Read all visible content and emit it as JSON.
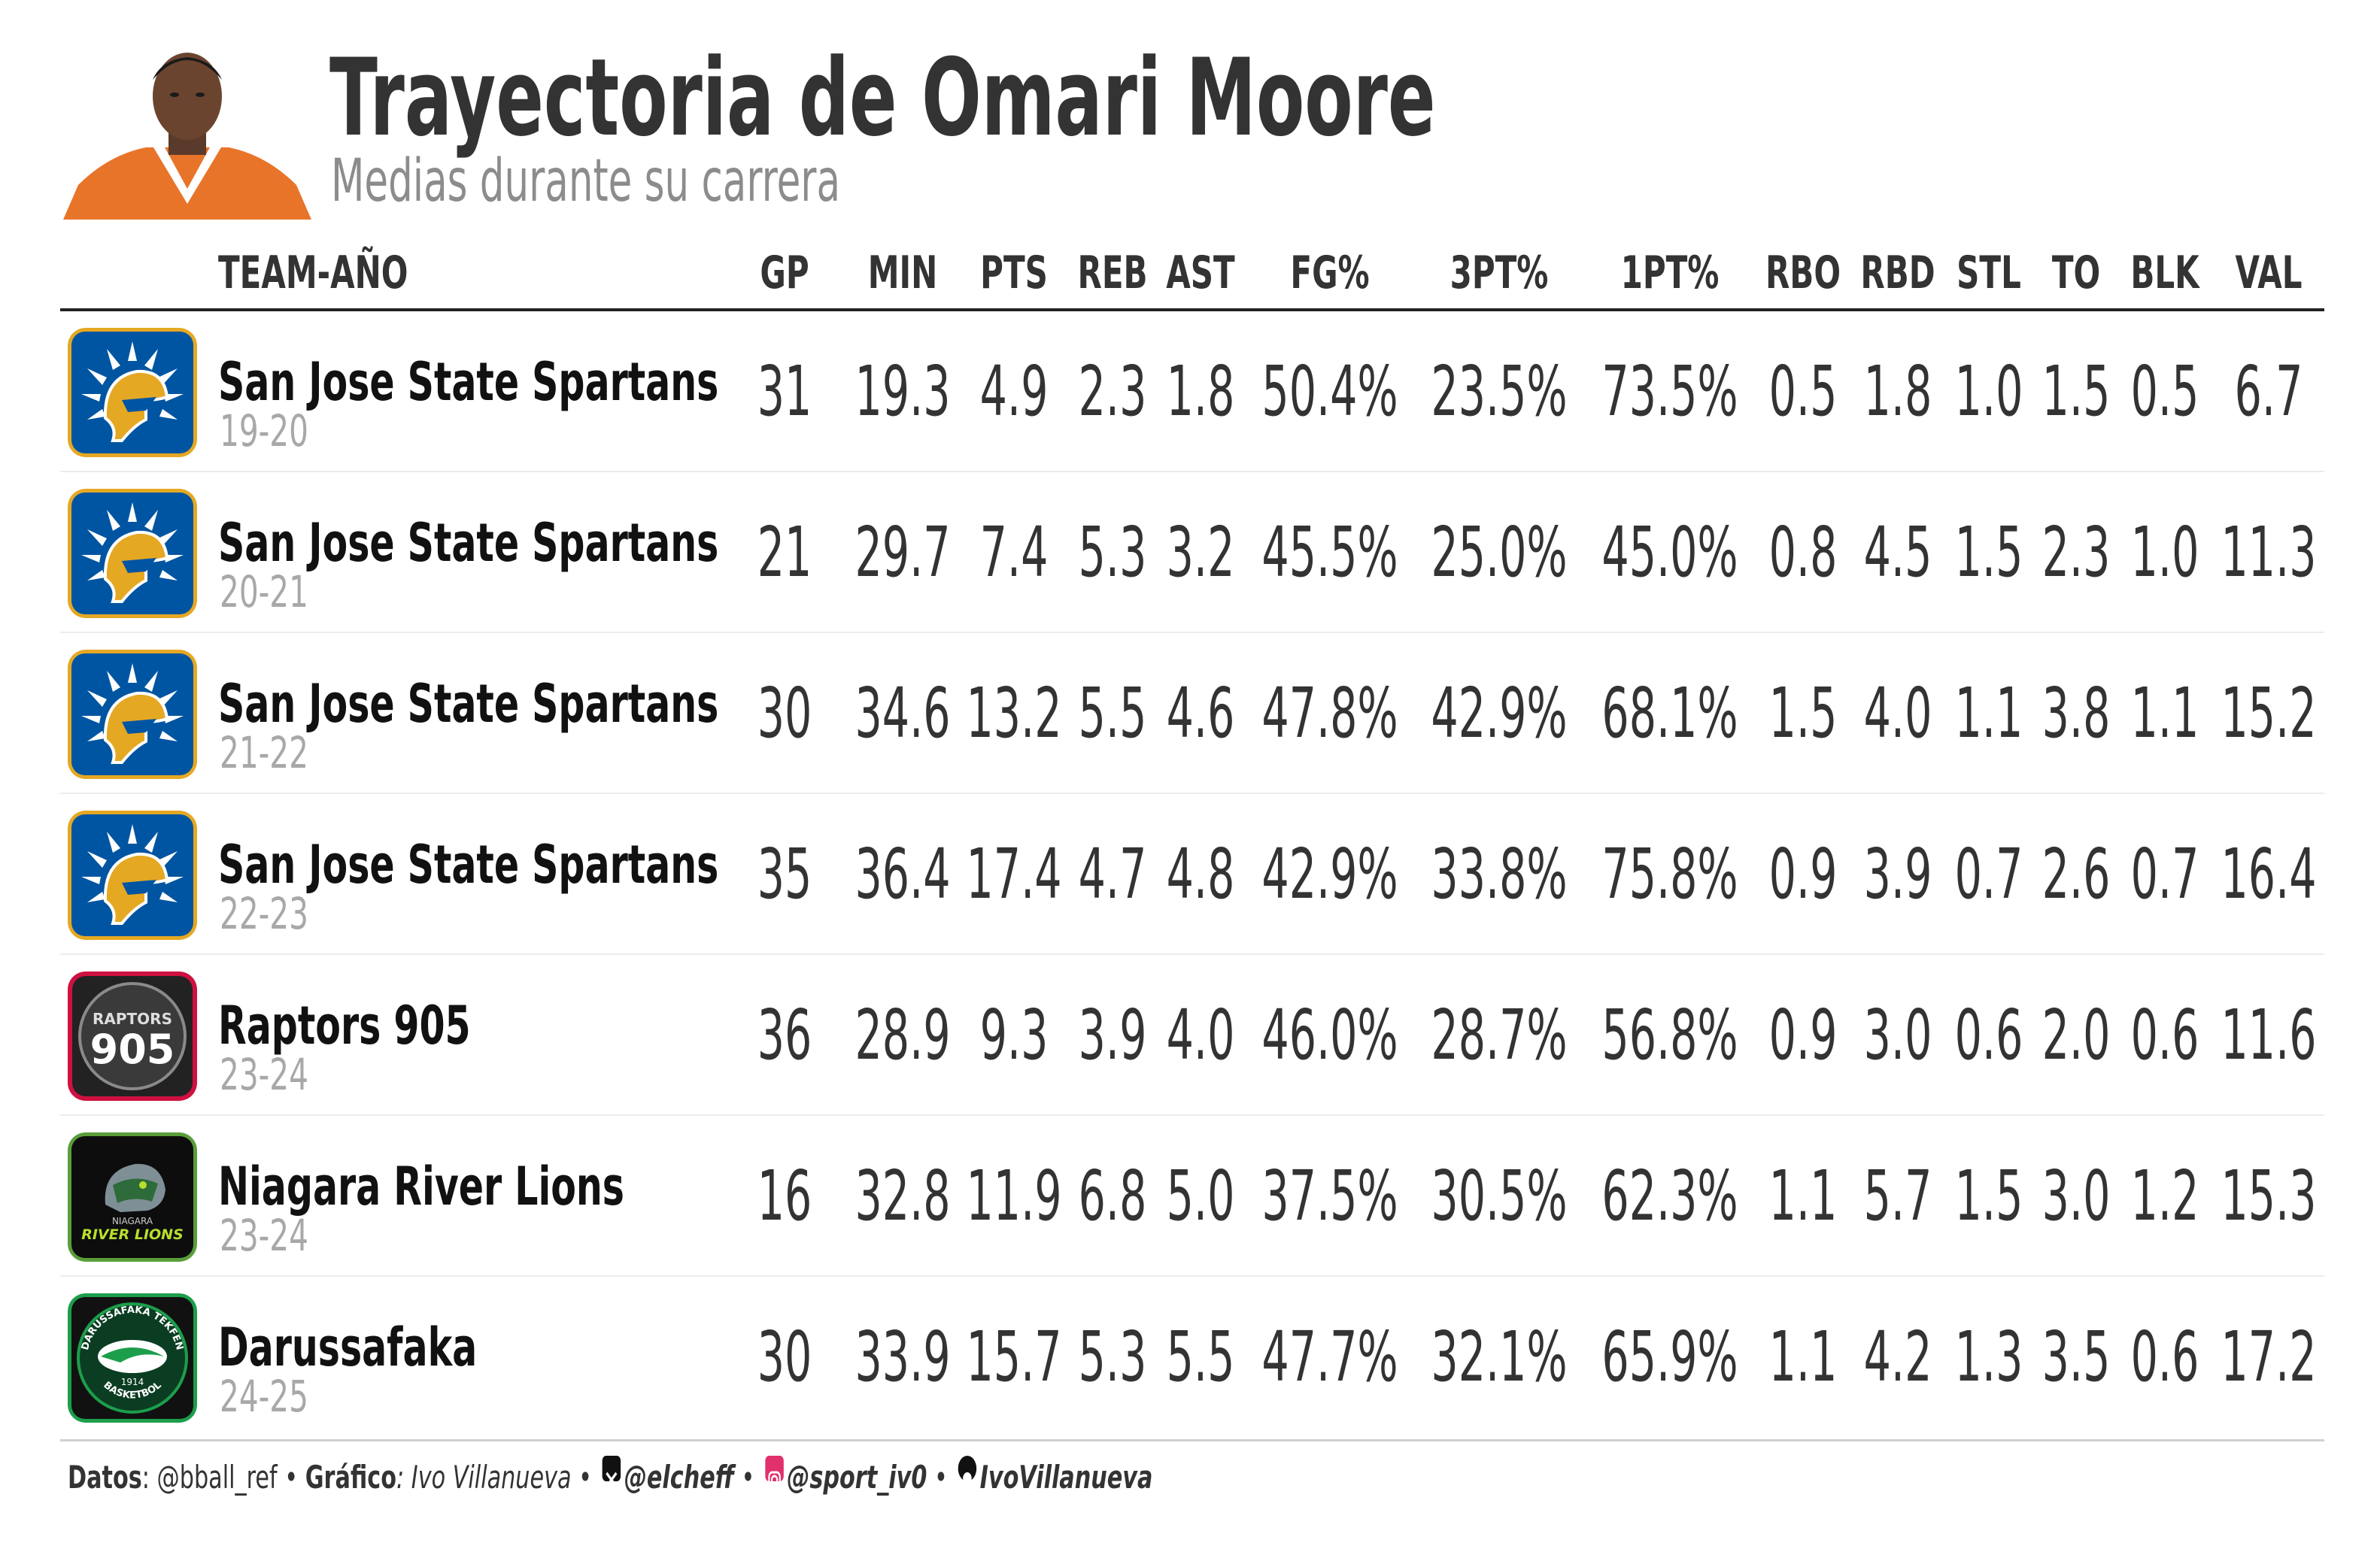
{
  "header": {
    "title": "Trayectoria de Omari Moore",
    "subtitle": "Medias durante su carrera"
  },
  "chart_data": {
    "type": "table",
    "columns": [
      "TEAM-AÑO",
      "GP",
      "MIN",
      "PTS",
      "REB",
      "AST",
      "FG%",
      "3PT%",
      "1PT%",
      "RBO",
      "RBD",
      "STL",
      "TO",
      "BLK",
      "VAL"
    ],
    "rows": [
      {
        "team": "San Jose State Spartans",
        "season": "19-20",
        "logo": "spartans-logo",
        "stats": [
          "31",
          "19.3",
          "4.9",
          "2.3",
          "1.8",
          "50.4%",
          "23.5%",
          "73.5%",
          "0.5",
          "1.8",
          "1.0",
          "1.5",
          "0.5",
          "6.7"
        ]
      },
      {
        "team": "San Jose State Spartans",
        "season": "20-21",
        "logo": "spartans-logo",
        "stats": [
          "21",
          "29.7",
          "7.4",
          "5.3",
          "3.2",
          "45.5%",
          "25.0%",
          "45.0%",
          "0.8",
          "4.5",
          "1.5",
          "2.3",
          "1.0",
          "11.3"
        ]
      },
      {
        "team": "San Jose State Spartans",
        "season": "21-22",
        "logo": "spartans-logo",
        "stats": [
          "30",
          "34.6",
          "13.2",
          "5.5",
          "4.6",
          "47.8%",
          "42.9%",
          "68.1%",
          "1.5",
          "4.0",
          "1.1",
          "3.8",
          "1.1",
          "15.2"
        ]
      },
      {
        "team": "San Jose State Spartans",
        "season": "22-23",
        "logo": "spartans-logo",
        "stats": [
          "35",
          "36.4",
          "17.4",
          "4.7",
          "4.8",
          "42.9%",
          "33.8%",
          "75.8%",
          "0.9",
          "3.9",
          "0.7",
          "2.6",
          "0.7",
          "16.4"
        ]
      },
      {
        "team": "Raptors 905",
        "season": "23-24",
        "logo": "raptors-905-logo",
        "stats": [
          "36",
          "28.9",
          "9.3",
          "3.9",
          "4.0",
          "46.0%",
          "28.7%",
          "56.8%",
          "0.9",
          "3.0",
          "0.6",
          "2.0",
          "0.6",
          "11.6"
        ]
      },
      {
        "team": "Niagara River Lions",
        "season": "23-24",
        "logo": "river-lions-logo",
        "stats": [
          "16",
          "32.8",
          "11.9",
          "6.8",
          "5.0",
          "37.5%",
          "30.5%",
          "62.3%",
          "1.1",
          "5.7",
          "1.5",
          "3.0",
          "1.2",
          "15.3"
        ]
      },
      {
        "team": "Darussafaka",
        "season": "24-25",
        "logo": "darussafaka-logo",
        "stats": [
          "30",
          "33.9",
          "15.7",
          "5.3",
          "5.5",
          "47.7%",
          "32.1%",
          "65.9%",
          "1.1",
          "4.2",
          "1.3",
          "3.5",
          "0.6",
          "17.2"
        ]
      }
    ]
  },
  "logos": {
    "raptors_905": {
      "top": "RAPTORS",
      "number": "905"
    },
    "river_lions": {
      "small": "NIAGARA",
      "name": "RIVER LIONS"
    },
    "darussafaka": {
      "ring_top": "DARUSSAFAKA TEKFEN",
      "ring_bottom": "BASKETBOL",
      "year": "1914"
    }
  },
  "footer": {
    "data_label": "Datos",
    "data_value": ": @bball_ref",
    "sep1": " • ",
    "chart_label": "Gráfico",
    "chart_value": ": Ivo Villanueva",
    "sep2": " • ",
    "x_handle": "@elcheff",
    "sep3": " • ",
    "ig_handle": "@sport_iv0",
    "sep4": " • ",
    "gh_handle": "IvoVillanueva"
  },
  "colors": {
    "text": "#333333",
    "muted": "#8c8c8c",
    "spartans_blue": "#0055a2",
    "spartans_gold": "#e5a823",
    "raptors_red": "#ce1141",
    "river_lions_green": "#5a9e3a",
    "darussafaka_green": "#1c9e4b",
    "instagram": "#e1306c"
  },
  "icons": [
    "x-icon",
    "instagram-icon",
    "github-icon"
  ]
}
